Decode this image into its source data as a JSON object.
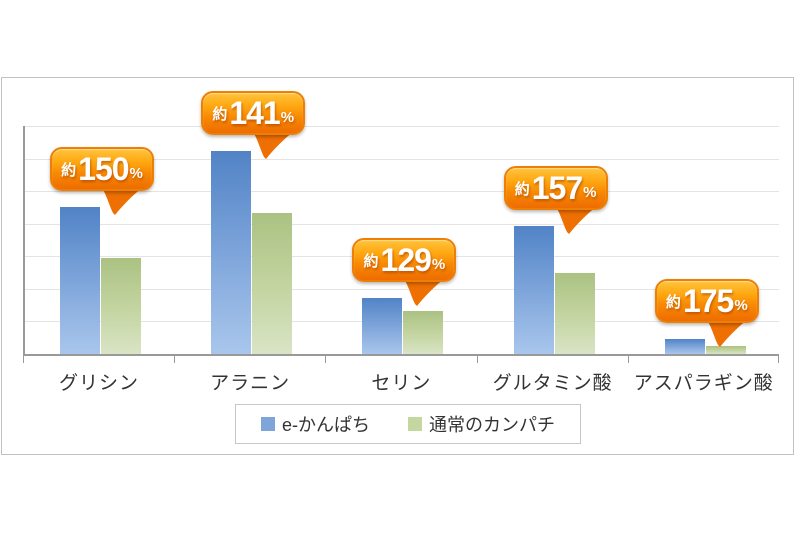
{
  "chart_data": {
    "type": "bar",
    "title": "",
    "xlabel": "",
    "ylabel": "",
    "y_axis_tick_labels": "none (unlabeled axis)",
    "unit": "relative content (axis unlabeled; values proportional to bar heights)",
    "ylim": [
      0,
      228
    ],
    "gridline_intervals": 7,
    "grid": "horizontal",
    "legend_position": "bottom-center",
    "categories": [
      "グリシン",
      "アラニン",
      "セリン",
      "グルタミン酸",
      "アスパラギン酸"
    ],
    "series": [
      {
        "name": "e-かんぱち",
        "color": "#5b8bd0",
        "values": [
          147,
          203,
          56,
          128,
          15
        ]
      },
      {
        "name": "通常のカンパチ",
        "color": "#c3d69b",
        "values": [
          96,
          141,
          43,
          81,
          8.5
        ]
      }
    ],
    "annotations": [
      {
        "category_index": 0,
        "prefix": "約",
        "value": "150",
        "suffix": "%"
      },
      {
        "category_index": 1,
        "prefix": "約",
        "value": "141",
        "suffix": "%"
      },
      {
        "category_index": 2,
        "prefix": "約",
        "value": "129",
        "suffix": "%"
      },
      {
        "category_index": 3,
        "prefix": "約",
        "value": "157",
        "suffix": "%"
      },
      {
        "category_index": 4,
        "prefix": "約",
        "value": "175",
        "suffix": "%"
      }
    ]
  },
  "legend": {
    "items": [
      {
        "label": "e-かんぱち",
        "swatch_color": "#7da5da"
      },
      {
        "label": "通常のカンパチ",
        "swatch_color": "#c5d7a0"
      }
    ]
  },
  "colors": {
    "panel_border": "#c2c2c2",
    "gridline": "#e4e4e4",
    "axis": "#999999",
    "bar_blue_top": "#5183c6",
    "bar_blue_bottom": "#a9c6ec",
    "bar_green_top": "#abc282",
    "bar_green_bottom": "#d9e4c5",
    "callout_orange_top": "#ffc33c",
    "callout_orange_bottom": "#ee6c00",
    "label_text": "#333333"
  }
}
